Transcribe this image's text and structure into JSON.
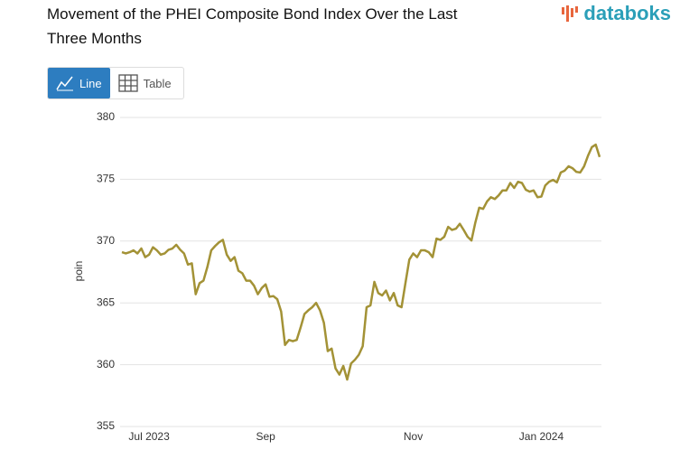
{
  "ui": {
    "logo": "databoks",
    "tabs": [
      "Line",
      "Table"
    ]
  },
  "chart_data": {
    "type": "line",
    "title": "Movement of the PHEI Composite Bond Index Over the Last Three Months",
    "y_label": "poin",
    "color": "#a39236",
    "grid": true,
    "ylim": [
      355,
      380
    ],
    "yticks": [
      355,
      360,
      365,
      370,
      375,
      380
    ],
    "categories": [
      null,
      null,
      null,
      null,
      null,
      null,
      null,
      "Jul 2023",
      null,
      null,
      null,
      null,
      null,
      null,
      null,
      null,
      null,
      null,
      null,
      null,
      null,
      null,
      null,
      null,
      null,
      null,
      null,
      null,
      null,
      null,
      null,
      null,
      null,
      null,
      null,
      null,
      null,
      "Sep",
      null,
      null,
      null,
      null,
      null,
      null,
      null,
      null,
      null,
      null,
      null,
      null,
      null,
      null,
      null,
      null,
      null,
      null,
      null,
      null,
      null,
      null,
      null,
      null,
      null,
      null,
      null,
      null,
      null,
      null,
      null,
      null,
      null,
      null,
      null,
      null,
      null,
      "Nov",
      null,
      null,
      null,
      null,
      null,
      null,
      null,
      null,
      null,
      null,
      null,
      null,
      null,
      null,
      null,
      null,
      null,
      null,
      null,
      null,
      null,
      null,
      null,
      null,
      null,
      null,
      null,
      null,
      null,
      null,
      null,
      null,
      "Jan 2024",
      null,
      null,
      null,
      null,
      null,
      null,
      null,
      null,
      null,
      null,
      null,
      null,
      null,
      null,
      null
    ],
    "values": [
      369.1,
      369.0,
      369.1,
      369.25,
      369.0,
      369.4,
      368.7,
      368.9,
      369.5,
      369.25,
      368.9,
      369.0,
      369.3,
      369.4,
      369.7,
      369.3,
      369.0,
      368.1,
      368.2,
      365.7,
      366.6,
      366.8,
      367.9,
      369.25,
      369.6,
      369.9,
      370.1,
      368.9,
      368.4,
      368.7,
      367.6,
      367.4,
      366.8,
      366.8,
      366.4,
      365.7,
      366.2,
      366.5,
      365.5,
      365.55,
      365.3,
      364.3,
      361.6,
      362.0,
      361.9,
      362.0,
      363.0,
      364.1,
      364.4,
      364.65,
      365.0,
      364.4,
      363.4,
      361.1,
      361.3,
      359.7,
      359.2,
      359.9,
      358.8,
      360.1,
      360.4,
      360.8,
      361.5,
      364.65,
      364.8,
      366.7,
      365.8,
      365.6,
      366.0,
      365.2,
      365.8,
      364.8,
      364.65,
      366.6,
      368.5,
      369.0,
      368.7,
      369.25,
      369.25,
      369.1,
      368.7,
      370.2,
      370.1,
      370.35,
      371.15,
      370.9,
      371.0,
      371.4,
      370.9,
      370.35,
      370.05,
      371.5,
      372.7,
      372.6,
      373.2,
      373.55,
      373.4,
      373.7,
      374.1,
      374.1,
      374.7,
      374.3,
      374.8,
      374.7,
      374.15,
      374.0,
      374.1,
      373.55,
      373.6,
      374.5,
      374.8,
      374.95,
      374.75,
      375.55,
      375.7,
      376.05,
      375.9,
      375.6,
      375.55,
      376.05,
      376.9,
      377.6,
      377.8,
      376.8
    ]
  }
}
